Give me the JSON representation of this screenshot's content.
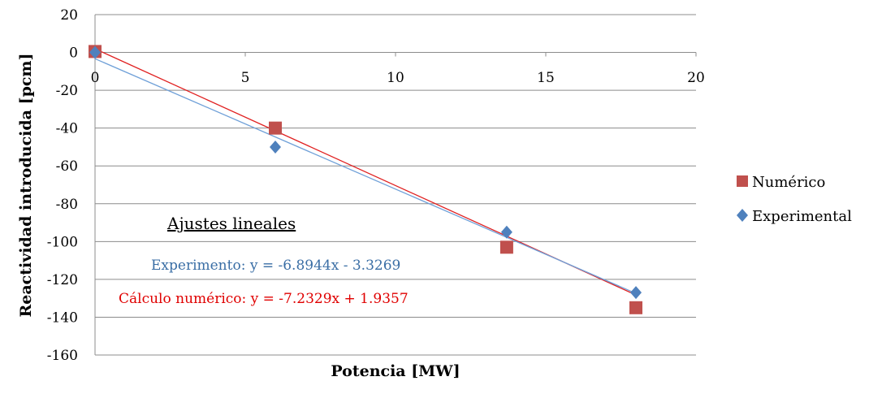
{
  "chart_data": {
    "type": "scatter",
    "xlabel": "Potencia [MW]",
    "ylabel": "Reactividad introducida [pcm]",
    "xlim": [
      0,
      20
    ],
    "ylim": [
      -160,
      20
    ],
    "x_ticks": [
      "0",
      "5",
      "10",
      "15",
      "20"
    ],
    "y_ticks": [
      "20",
      "0",
      "-20",
      "-40",
      "-60",
      "-80",
      "-100",
      "-120",
      "-140",
      "-160"
    ],
    "grid": "horizontal",
    "legend_position": "right",
    "series": [
      {
        "name": "Numérico",
        "marker": "square",
        "color": "#c0504d",
        "points": [
          {
            "x": 0,
            "y": 0.5
          },
          {
            "x": 6,
            "y": -40
          },
          {
            "x": 13.7,
            "y": -103
          },
          {
            "x": 18,
            "y": -135
          }
        ],
        "trendline": {
          "slope": -7.2329,
          "intercept": 1.9357,
          "color": "#e02020"
        }
      },
      {
        "name": "Experimental",
        "marker": "diamond",
        "color": "#4f81bd",
        "points": [
          {
            "x": 0,
            "y": 0
          },
          {
            "x": 6,
            "y": -50
          },
          {
            "x": 13.7,
            "y": -95
          },
          {
            "x": 18,
            "y": -127
          }
        ],
        "trendline": {
          "slope": -6.8944,
          "intercept": -3.3269,
          "color": "#6fa0d8"
        }
      }
    ],
    "annotations": {
      "title": "Ajustes lineales",
      "experimental_fit": "Experimento: y = -6.8944x - 3.3269",
      "numerical_fit": "Cálculo numérico: y = -7.2329x + 1.9357",
      "experimental_color": "#3a6ea5",
      "numerical_color": "#e00000"
    }
  }
}
